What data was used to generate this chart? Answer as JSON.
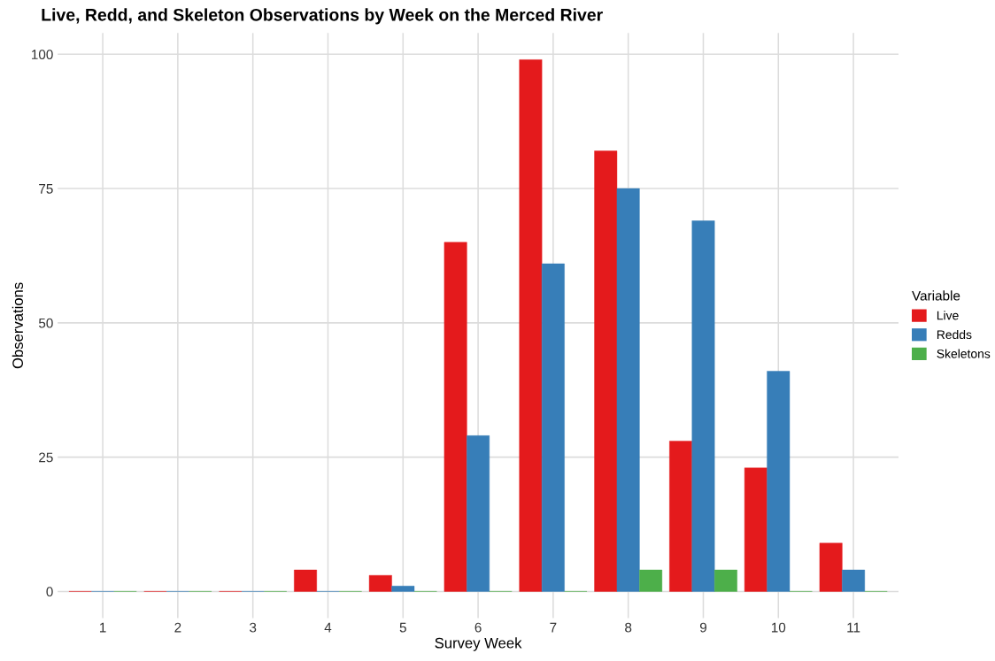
{
  "chart_data": {
    "type": "bar",
    "title": "Live, Redd, and Skeleton Observations by Week on the Merced River",
    "xlabel": "Survey Week",
    "ylabel": "Observations",
    "legend_title": "Variable",
    "categories": [
      "1",
      "2",
      "3",
      "4",
      "5",
      "6",
      "7",
      "8",
      "9",
      "10",
      "11"
    ],
    "series": [
      {
        "name": "Live",
        "color": "#e41a1c",
        "values": [
          0,
          0,
          0,
          4,
          3,
          65,
          99,
          82,
          28,
          23,
          9
        ]
      },
      {
        "name": "Redds",
        "color": "#377eb8",
        "values": [
          0,
          0,
          0,
          0,
          1,
          29,
          61,
          75,
          69,
          41,
          4
        ]
      },
      {
        "name": "Skeletons",
        "color": "#4daf4a",
        "values": [
          0,
          0,
          0,
          0,
          0,
          0,
          0,
          4,
          4,
          0,
          0
        ]
      }
    ],
    "ylim": [
      -4.95,
      103.95
    ],
    "yticks": [
      0,
      25,
      50,
      75,
      100
    ],
    "grid": true,
    "legend": "right"
  }
}
